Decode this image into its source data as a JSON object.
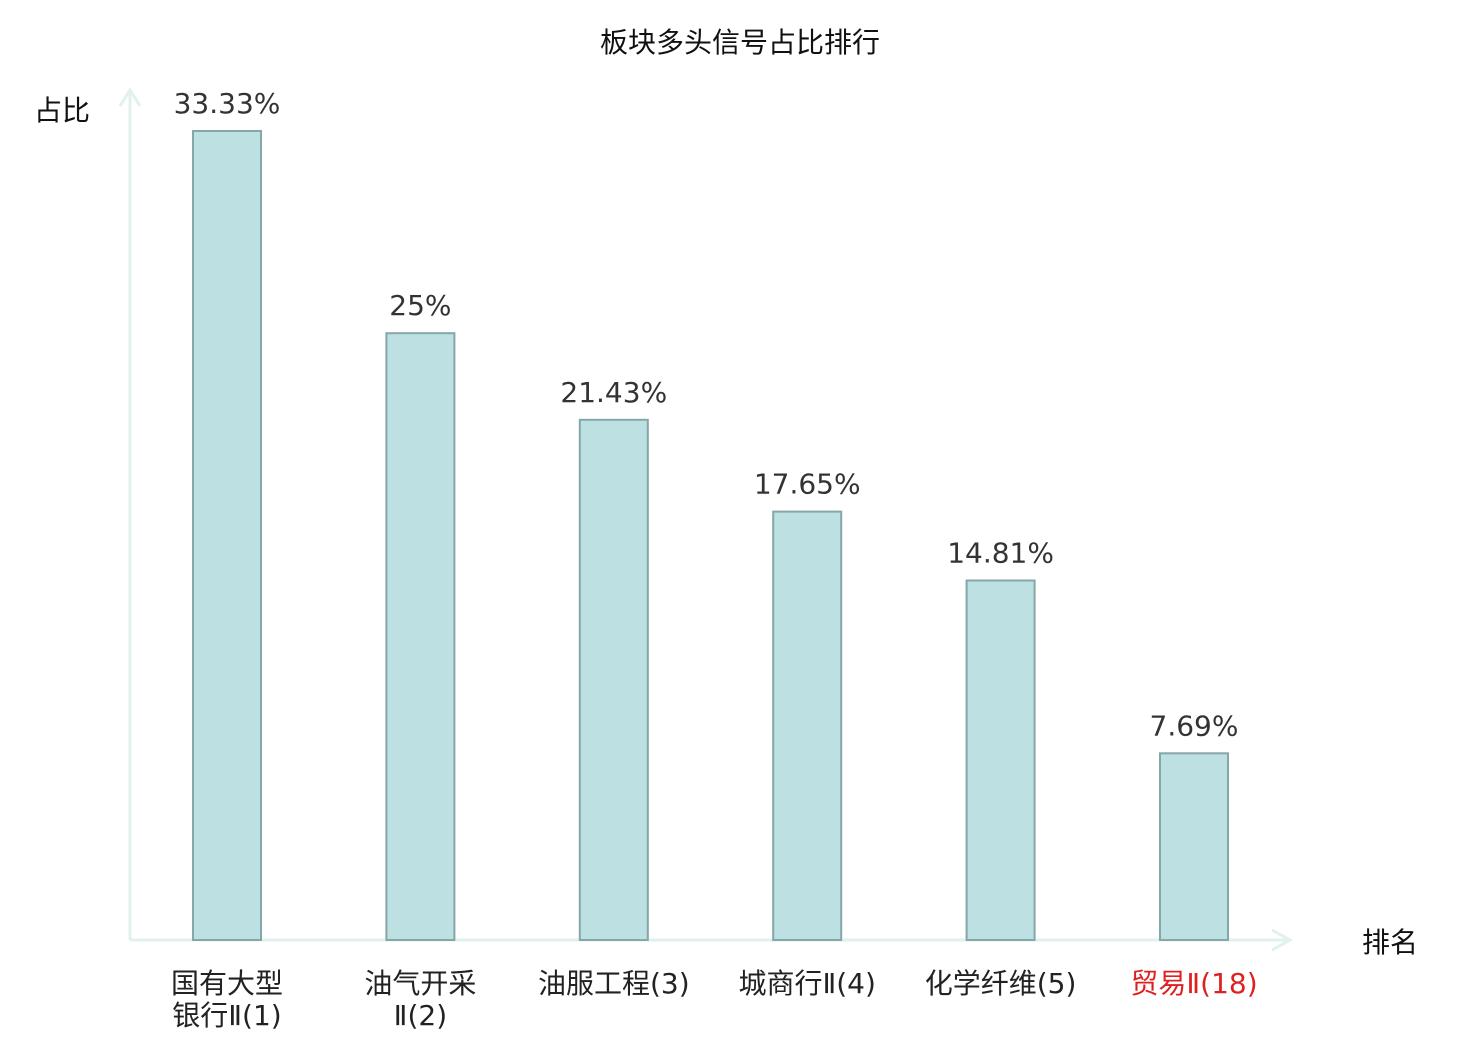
{
  "chart_data": {
    "type": "bar",
    "title": "板块多头信号占比排行",
    "xlabel": "排名",
    "ylabel": "占比",
    "ylim": [
      0,
      35
    ],
    "grid": false,
    "categories": [
      {
        "lines": [
          "国有大型",
          "银行Ⅱ(1)"
        ],
        "highlight": false
      },
      {
        "lines": [
          "油气开采",
          "Ⅱ(2)"
        ],
        "highlight": false
      },
      {
        "lines": [
          "油服工程(3)"
        ],
        "highlight": false
      },
      {
        "lines": [
          "城商行Ⅱ(4)"
        ],
        "highlight": false
      },
      {
        "lines": [
          "化学纤维(5)"
        ],
        "highlight": false
      },
      {
        "lines": [
          "贸易Ⅱ(18)"
        ],
        "highlight": true
      }
    ],
    "values": [
      33.33,
      25,
      21.43,
      17.65,
      14.81,
      7.69
    ],
    "value_labels": [
      "33.33%",
      "25%",
      "21.43%",
      "17.65%",
      "14.81%",
      "7.69%"
    ]
  },
  "colors": {
    "bar_fill": "#bde0e3",
    "bar_stroke": "#86a6a8",
    "axis": "#e0f1ee",
    "text": "#111111",
    "value_text": "#333333",
    "category_text": "#222222",
    "highlight_text": "#e02020"
  }
}
